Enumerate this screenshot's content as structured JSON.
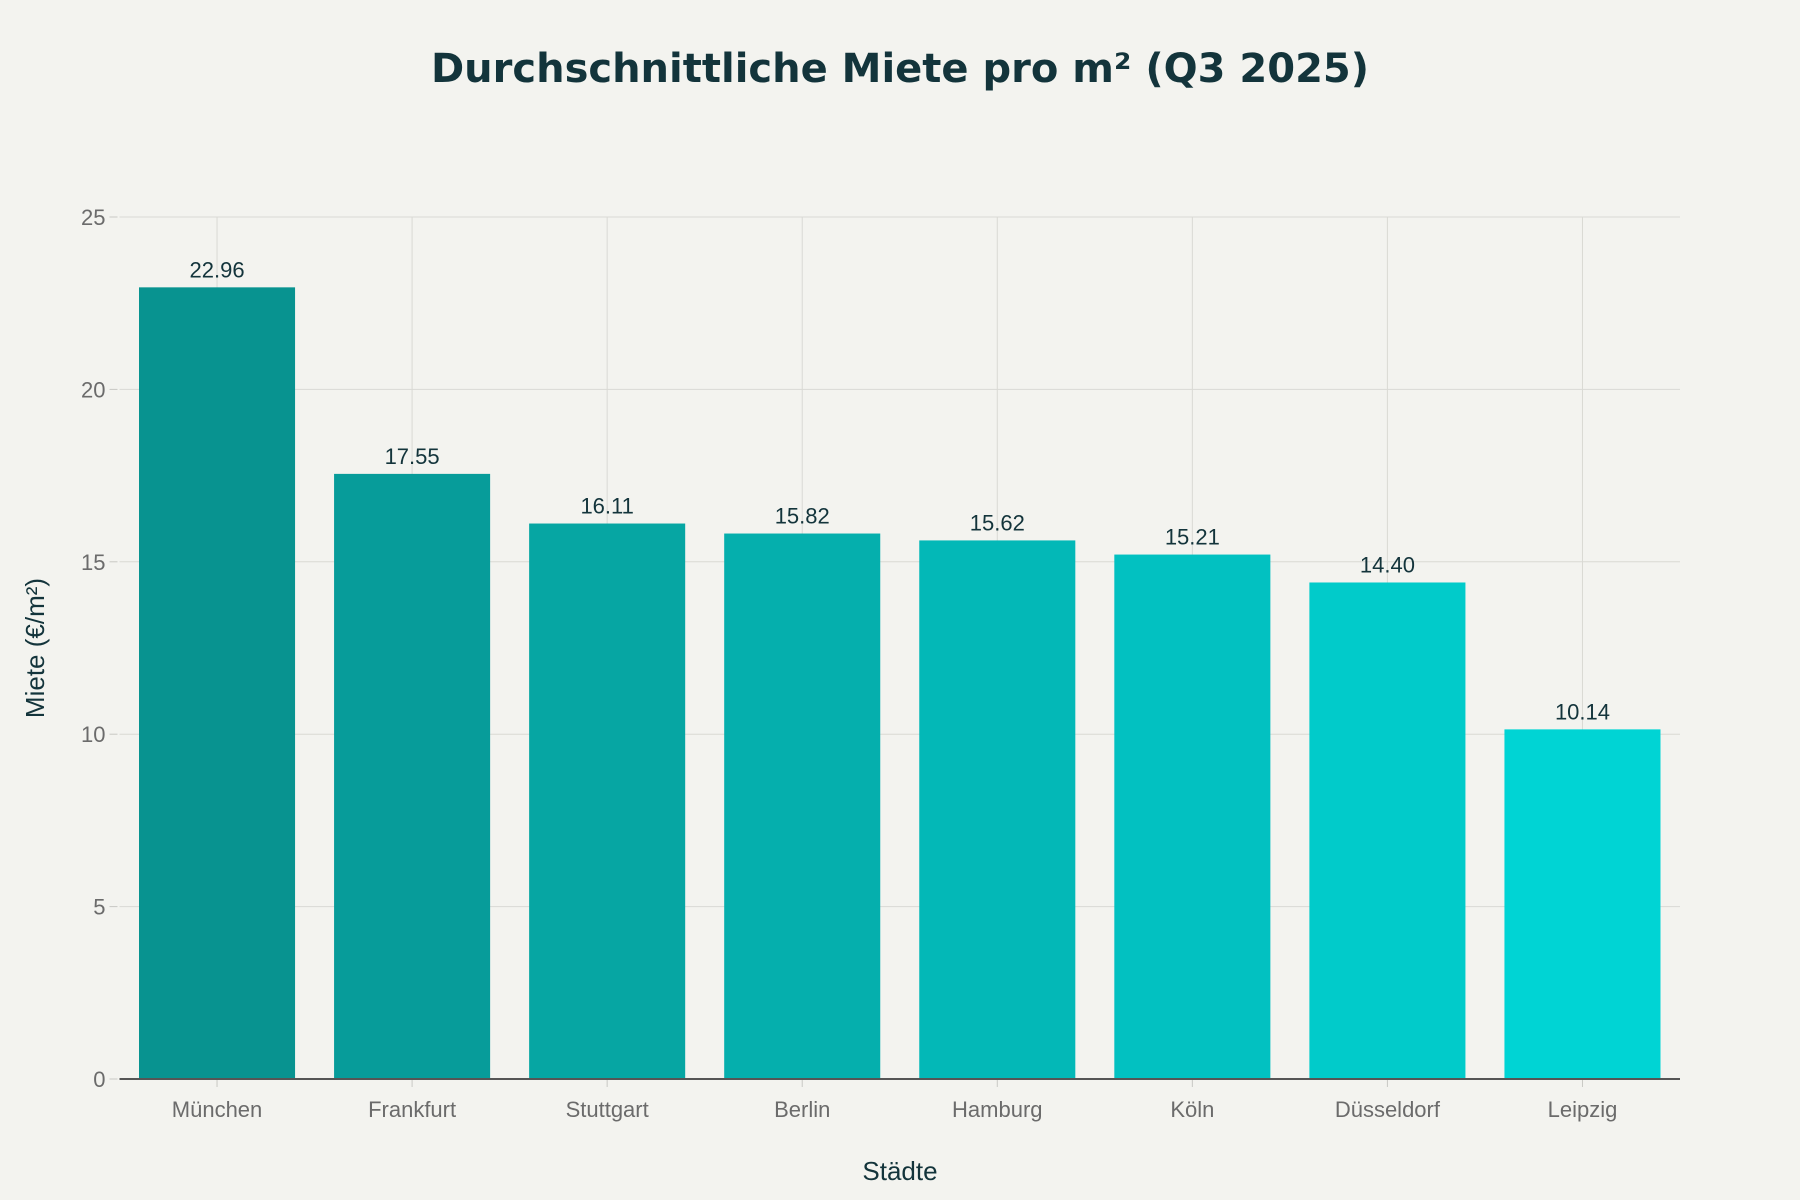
{
  "chart_data": {
    "type": "bar",
    "title": "Durchschnittliche Miete pro m² (Q3 2025)",
    "xlabel": "Städte",
    "ylabel": "Miete (€/m²)",
    "categories": [
      "München",
      "Frankfurt",
      "Stuttgart",
      "Berlin",
      "Hamburg",
      "Köln",
      "Düsseldorf",
      "Leipzig"
    ],
    "values": [
      22.96,
      17.55,
      16.11,
      15.82,
      15.62,
      15.21,
      14.4,
      10.14
    ],
    "value_labels": [
      "22.96",
      "17.55",
      "16.11",
      "15.82",
      "15.62",
      "15.21",
      "14.40",
      "10.14"
    ],
    "ylim": [
      0,
      25
    ],
    "yticks": [
      "0",
      "5",
      "10",
      "15",
      "20",
      "25"
    ],
    "grid": true,
    "colors": {
      "start": "#089390",
      "end": "#00d4d4",
      "text": "#13343b",
      "axis": "#6b6b6b"
    }
  }
}
